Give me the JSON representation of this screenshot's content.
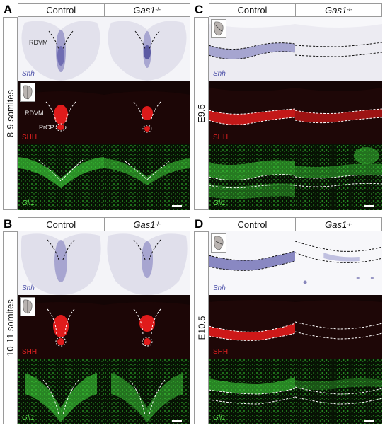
{
  "panels": {
    "A": {
      "letter": "A",
      "row_label": "8-9 somites",
      "col_control": "Control",
      "col_mutant_gene": "Gas1",
      "col_mutant_sup": "-/-",
      "label_shh": "Shh",
      "label_SHH": "SHH",
      "label_gli1": "Gli1",
      "label_rdvm_top": "RDVM",
      "label_rdvm_mid": "RDVM",
      "label_prcp": "PrCP"
    },
    "B": {
      "letter": "B",
      "row_label": "10-11 somites",
      "col_control": "Control",
      "col_mutant_gene": "Gas1",
      "col_mutant_sup": "-/-",
      "label_shh": "Shh",
      "label_SHH": "SHH",
      "label_gli1": "Gli1"
    },
    "C": {
      "letter": "C",
      "row_label": "E9.5",
      "col_control": "Control",
      "col_mutant_gene": "Gas1",
      "col_mutant_sup": "-/-",
      "label_shh": "Shh",
      "label_SHH": "SHH",
      "label_gli1": "Gli1"
    },
    "D": {
      "letter": "D",
      "row_label": "E10.5",
      "col_control": "Control",
      "col_mutant_gene": "Gas1",
      "col_mutant_sup": "-/-",
      "label_shh": "Shh",
      "label_SHH": "SHH",
      "label_gli1": "Gli1"
    }
  },
  "colors": {
    "ish_background": "#e9e8f2",
    "ish_stain": "#5b5aa8",
    "fluor_red": "#e21a1a",
    "fluor_green": "#3fd23a",
    "fluor_background": "#0b0505"
  }
}
